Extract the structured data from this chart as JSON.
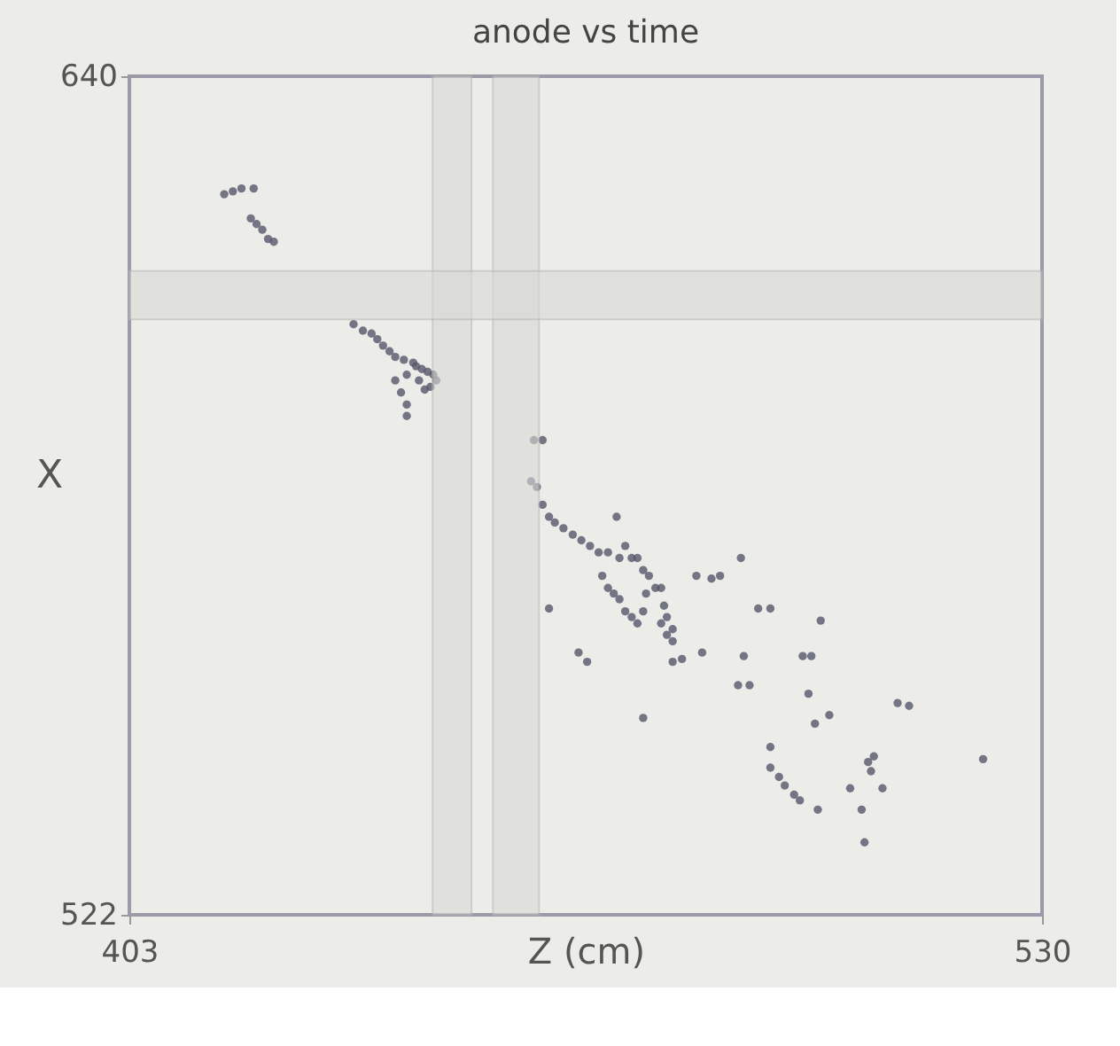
{
  "chart_data": {
    "type": "scatter",
    "title": "anode vs time",
    "xlabel": "Z (cm)",
    "ylabel": "X",
    "xlim": [
      403,
      530
    ],
    "ylim": [
      522,
      640
    ],
    "xticks": [
      403,
      530
    ],
    "yticks": [
      522,
      640
    ],
    "grid": false,
    "legend": false,
    "marker": "circle",
    "bands": [
      {
        "axis": "x",
        "from": 445.2,
        "to": 450.6,
        "color": "#d9dad6"
      },
      {
        "axis": "x",
        "from": 453.6,
        "to": 460.0,
        "color": "#d9dad6"
      },
      {
        "axis": "y",
        "from": 605.8,
        "to": 612.6,
        "color": "#d9dad6"
      }
    ],
    "series": [
      {
        "color": "#55556a",
        "x": [
          416.2,
          417.4,
          418.6,
          420.3,
          419.9,
          420.7,
          421.5,
          422.3,
          423.1,
          434.2,
          435.5,
          436.7,
          437.5,
          438.3,
          439.2,
          440.0,
          441.2,
          442.5,
          443.7,
          444.5,
          445.3,
          445.7,
          444.9,
          443.3,
          441.6,
          440.0,
          440.8,
          441.6,
          441.6,
          444.1,
          442.9,
          459.3,
          460.5,
          458.9,
          459.7,
          460.5,
          461.4,
          462.2,
          463.4,
          464.7,
          465.9,
          467.1,
          468.3,
          469.6,
          470.8,
          471.2,
          472.0,
          472.9,
          473.7,
          474.5,
          475.3,
          468.8,
          469.6,
          470.4,
          471.2,
          472.0,
          472.9,
          473.7,
          474.9,
          476.2,
          477.0,
          477.4,
          477.8,
          478.6,
          477.8,
          478.6,
          477.0,
          474.5,
          461.4,
          465.5,
          466.7,
          478.6,
          479.9,
          482.7,
          481.9,
          484.0,
          485.2,
          488.1,
          488.5,
          490.5,
          492.2,
          487.7,
          489.3,
          496.7,
          497.9,
          499.2,
          474.5,
          497.5,
          500.4,
          498.4,
          509.9,
          511.5,
          492.2,
          492.2,
          493.4,
          494.2,
          495.5,
          496.3,
          498.8,
          505.8,
          506.6,
          506.2,
          503.3,
          507.8,
          504.9,
          505.3,
          521.8
        ],
        "values": [
          623.4,
          623.8,
          624.2,
          624.2,
          620.0,
          619.2,
          618.4,
          617.1,
          616.7,
          605.1,
          604.2,
          603.8,
          603.0,
          602.1,
          601.3,
          600.5,
          600.1,
          599.7,
          598.8,
          598.4,
          598.0,
          597.2,
          596.3,
          597.2,
          598.0,
          597.2,
          595.5,
          593.8,
          592.2,
          595.9,
          599.2,
          588.8,
          588.8,
          583.0,
          582.2,
          579.7,
          578.0,
          577.2,
          576.4,
          575.5,
          574.7,
          573.9,
          573.0,
          573.0,
          578.0,
          572.2,
          573.9,
          572.2,
          572.2,
          570.5,
          569.7,
          569.7,
          568.0,
          567.2,
          566.4,
          564.7,
          563.9,
          563.0,
          567.2,
          568.0,
          568.0,
          565.5,
          563.9,
          562.2,
          561.4,
          560.5,
          563.0,
          564.7,
          565.1,
          558.9,
          557.6,
          557.6,
          558.0,
          558.9,
          569.7,
          569.3,
          569.7,
          572.2,
          558.4,
          565.1,
          565.1,
          554.3,
          554.3,
          558.4,
          558.4,
          563.4,
          549.7,
          553.1,
          550.1,
          548.9,
          551.8,
          551.4,
          545.6,
          542.7,
          541.4,
          540.2,
          538.9,
          538.1,
          536.8,
          543.5,
          544.3,
          542.2,
          539.8,
          539.8,
          536.8,
          532.2,
          543.9
        ]
      }
    ]
  }
}
